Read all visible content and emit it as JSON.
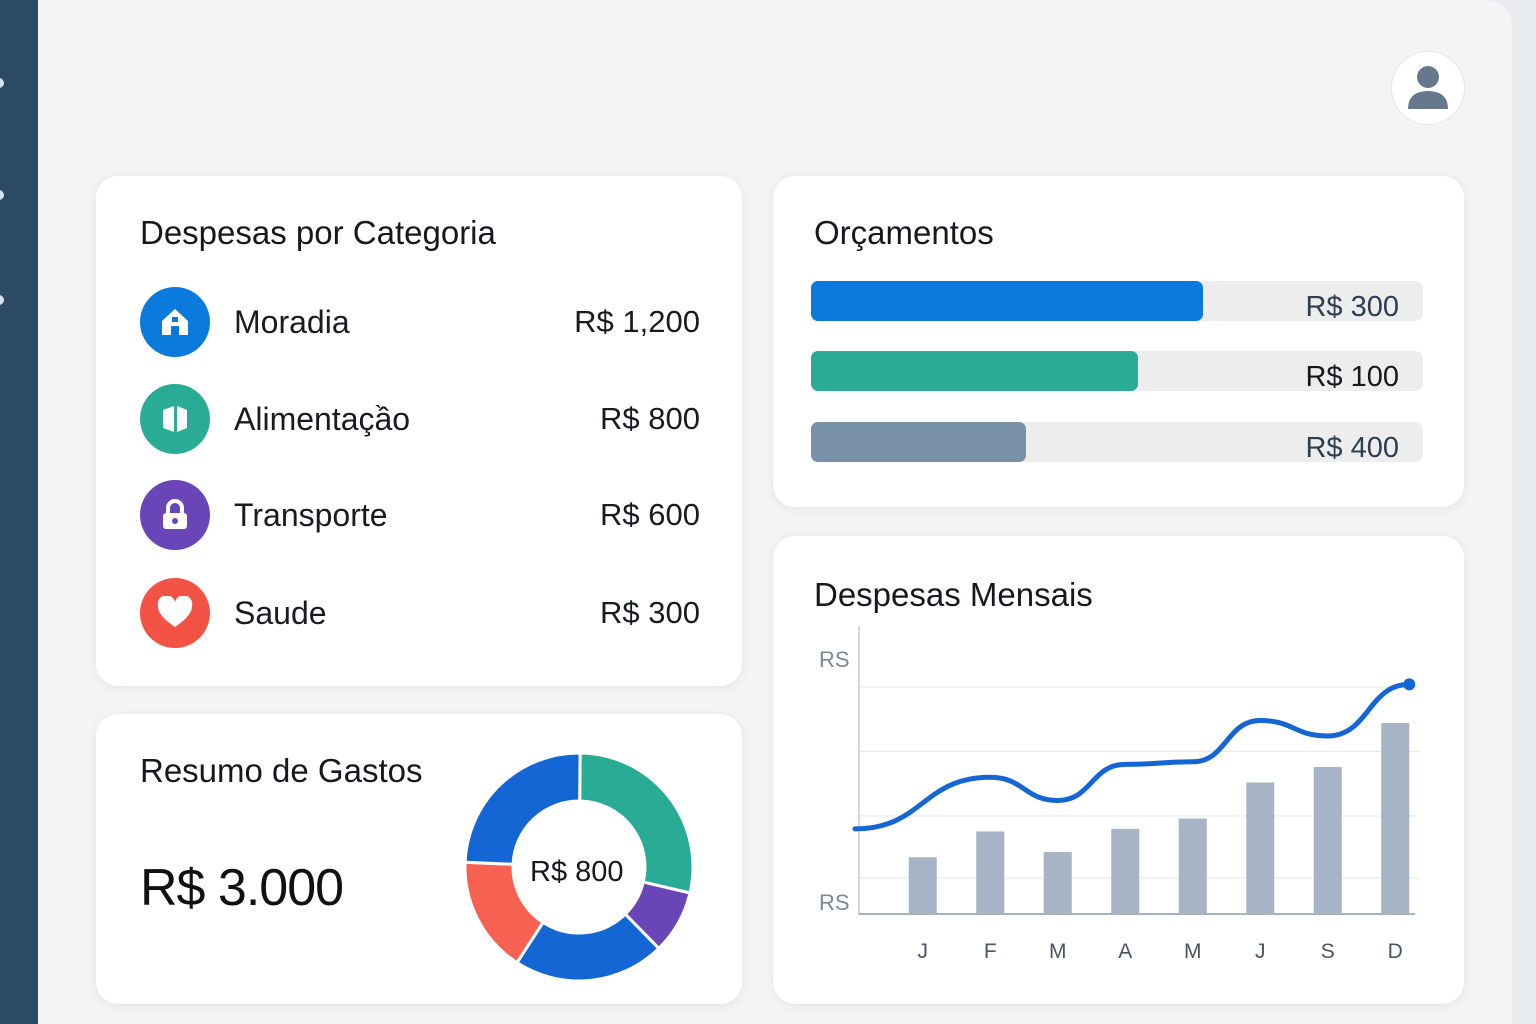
{
  "colors": {
    "sidebar": "#2b4a66",
    "blue": "#0a7bdd",
    "teal": "#2aab96",
    "purple": "#6a45b8",
    "red": "#f35345",
    "slate": "#7890a8",
    "bar": "#a6b4c6",
    "line": "#1466d4"
  },
  "header": {
    "avatar_icon": "user-avatar-icon"
  },
  "categories": {
    "title": "Despesas por Categoria",
    "items": [
      {
        "label": "Moradia",
        "value": "R$ 1,200",
        "icon": "home-icon",
        "color": "#0a7bdd"
      },
      {
        "label": "Alimentaçầo",
        "value": "R$ 800",
        "icon": "food-icon",
        "color": "#2aab96"
      },
      {
        "label": "Transporte",
        "value": "R$ 600",
        "icon": "lock-icon",
        "color": "#6a45b8"
      },
      {
        "label": "Saude",
        "value": "R$ 300",
        "icon": "heart-icon",
        "color": "#f35345"
      }
    ]
  },
  "budgets": {
    "title": "Orçamentos",
    "items": [
      {
        "value": "R$ 300",
        "fill": 0.64,
        "color": "#0a7bdd"
      },
      {
        "value": "R$ 100",
        "fill": 0.535,
        "color": "#2aab96"
      },
      {
        "value": "R$ 400",
        "fill": 0.352,
        "color": "#7890a8"
      }
    ]
  },
  "summary": {
    "title": "Resumo de Gastos",
    "total": "R$ 3.000",
    "donut_center": "R$ 800",
    "segments": [
      {
        "color": "#2aab96",
        "fraction": 0.285
      },
      {
        "color": "#6a45b8",
        "fraction": 0.09
      },
      {
        "color": "#1466d4",
        "fraction": 0.215
      },
      {
        "color": "#f76152",
        "fraction": 0.165
      },
      {
        "color": "#1466d4",
        "fraction": 0.245
      }
    ]
  },
  "monthly": {
    "title": "Despesas Mensais"
  },
  "chart_data": {
    "type": "bar",
    "title": "Despesas Mensais",
    "categories": [
      "J",
      "F",
      "M",
      "A",
      "M",
      "J",
      "S",
      "D"
    ],
    "y_tick_labels": [
      "RS",
      "RS"
    ],
    "ylim": [
      0,
      100
    ],
    "grid": true,
    "series": [
      {
        "type": "bar",
        "values": [
          22,
          32,
          24,
          33,
          37,
          51,
          57,
          74
        ]
      },
      {
        "type": "line",
        "values": [
          33,
          53,
          44,
          58,
          59,
          75,
          69,
          89
        ]
      }
    ]
  }
}
